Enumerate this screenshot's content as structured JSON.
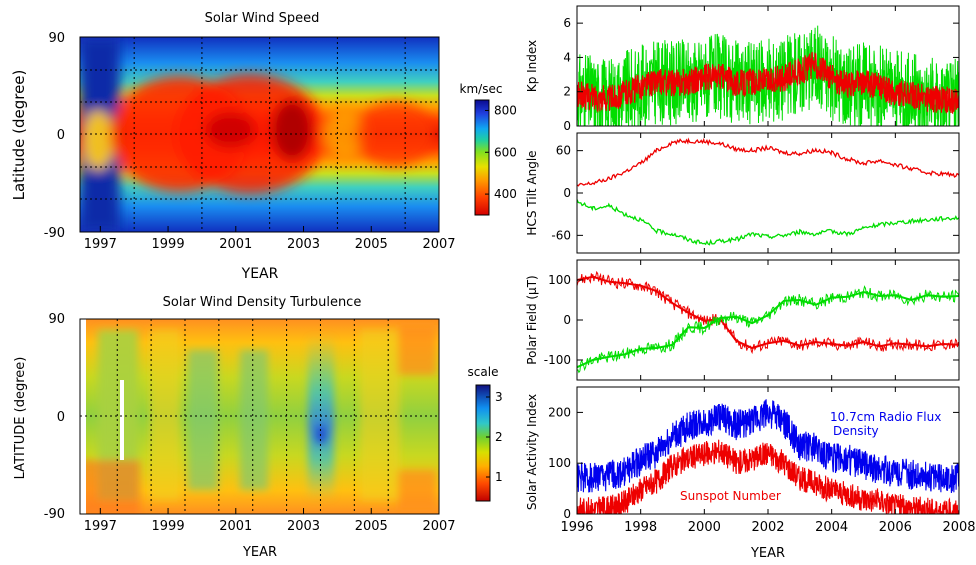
{
  "chart_data": [
    {
      "type": "heatmap",
      "title": "Solar Wind Speed",
      "xlabel": "YEAR",
      "ylabel": "Latitude (degree)",
      "xlim": [
        1996.4,
        2007
      ],
      "ylim": [
        -90,
        90
      ],
      "x_ticks": [
        "1997",
        "1999",
        "2001",
        "2003",
        "2005",
        "2007"
      ],
      "y_ticks": [
        "-90",
        "0",
        "90"
      ],
      "grid_x": [
        1998,
        2000,
        2002,
        2004,
        2006
      ],
      "grid_y": [
        -60,
        -30,
        0,
        30,
        60
      ],
      "colorbar": {
        "label": "km/sec",
        "ticks": [
          "400",
          "600",
          "800"
        ],
        "range": [
          300,
          850
        ]
      }
    },
    {
      "type": "heatmap",
      "title": "Solar Wind Density Turbulence",
      "xlabel": "YEAR",
      "ylabel": "LATITUDE (degree)",
      "xlim": [
        1996.4,
        2007
      ],
      "ylim": [
        -90,
        90
      ],
      "x_ticks": [
        "1997",
        "1999",
        "2001",
        "2003",
        "2005",
        "2007"
      ],
      "y_ticks": [
        "-90",
        "0",
        "90"
      ],
      "grid_x": [
        1997.5,
        1998.5,
        1999.5,
        2000.5,
        2001.5,
        2002.5,
        2003.5,
        2004.5,
        2005.5
      ],
      "grid_y": [
        0
      ],
      "colorbar": {
        "label": "scale",
        "ticks": [
          "1",
          "2",
          "3"
        ],
        "range": [
          0.4,
          3.3
        ]
      }
    },
    {
      "type": "line",
      "ylabel": "Kp Index",
      "xlim": [
        1996,
        2008
      ],
      "ylim": [
        0,
        7
      ],
      "y_ticks": [
        "0",
        "2",
        "4",
        "6"
      ],
      "series": [
        {
          "color": "#00dd00",
          "values": [
            [
              1996.0,
              1.8
            ],
            [
              1996.5,
              1.7
            ],
            [
              1997.0,
              1.6
            ],
            [
              1997.5,
              1.9
            ],
            [
              1998.0,
              2.3
            ],
            [
              1998.5,
              2.6
            ],
            [
              1999.0,
              2.5
            ],
            [
              1999.5,
              2.6
            ],
            [
              2000.0,
              2.8
            ],
            [
              2000.5,
              2.9
            ],
            [
              2001.0,
              2.5
            ],
            [
              2001.5,
              2.6
            ],
            [
              2002.0,
              2.6
            ],
            [
              2002.5,
              2.8
            ],
            [
              2003.0,
              3.2
            ],
            [
              2003.5,
              3.6
            ],
            [
              2004.0,
              2.8
            ],
            [
              2004.5,
              2.4
            ],
            [
              2005.0,
              2.5
            ],
            [
              2005.5,
              2.3
            ],
            [
              2006.0,
              1.9
            ],
            [
              2006.5,
              1.8
            ],
            [
              2007.0,
              1.6
            ],
            [
              2007.5,
              1.5
            ],
            [
              2008.0,
              1.5
            ]
          ]
        },
        {
          "color": "#ee0000",
          "values": [
            [
              1996.0,
              1.8
            ],
            [
              1996.5,
              1.7
            ],
            [
              1997.0,
              1.6
            ],
            [
              1997.5,
              1.9
            ],
            [
              1998.0,
              2.3
            ],
            [
              1998.5,
              2.6
            ],
            [
              1999.0,
              2.5
            ],
            [
              1999.5,
              2.6
            ],
            [
              2000.0,
              2.8
            ],
            [
              2000.5,
              2.9
            ],
            [
              2001.0,
              2.5
            ],
            [
              2001.5,
              2.6
            ],
            [
              2002.0,
              2.6
            ],
            [
              2002.5,
              2.8
            ],
            [
              2003.0,
              3.2
            ],
            [
              2003.5,
              3.6
            ],
            [
              2004.0,
              2.8
            ],
            [
              2004.5,
              2.4
            ],
            [
              2005.0,
              2.5
            ],
            [
              2005.5,
              2.3
            ],
            [
              2006.0,
              1.9
            ],
            [
              2006.5,
              1.8
            ],
            [
              2007.0,
              1.6
            ],
            [
              2007.5,
              1.5
            ],
            [
              2008.0,
              1.5
            ]
          ]
        }
      ]
    },
    {
      "type": "line",
      "ylabel": "HCS Tilt Angle",
      "xlim": [
        1996,
        2008
      ],
      "ylim": [
        -85,
        85
      ],
      "y_ticks": [
        "-60",
        "0",
        "60"
      ],
      "series": [
        {
          "color": "#ee0000",
          "values": [
            [
              1996.0,
              10
            ],
            [
              1996.5,
              14
            ],
            [
              1997.0,
              20
            ],
            [
              1997.5,
              30
            ],
            [
              1998.0,
              42
            ],
            [
              1998.5,
              60
            ],
            [
              1999.0,
              72
            ],
            [
              1999.5,
              74
            ],
            [
              2000.0,
              73
            ],
            [
              2000.5,
              70
            ],
            [
              2001.0,
              62
            ],
            [
              2001.5,
              60
            ],
            [
              2002.0,
              64
            ],
            [
              2002.5,
              57
            ],
            [
              2003.0,
              56
            ],
            [
              2003.5,
              61
            ],
            [
              2004.0,
              57
            ],
            [
              2004.5,
              48
            ],
            [
              2005.0,
              42
            ],
            [
              2005.5,
              46
            ],
            [
              2006.0,
              40
            ],
            [
              2006.5,
              34
            ],
            [
              2007.0,
              29
            ],
            [
              2007.5,
              27
            ],
            [
              2008.0,
              25
            ]
          ]
        },
        {
          "color": "#00dd00",
          "values": [
            [
              1996.0,
              -12
            ],
            [
              1996.5,
              -22
            ],
            [
              1997.0,
              -18
            ],
            [
              1997.5,
              -30
            ],
            [
              1998.0,
              -38
            ],
            [
              1998.5,
              -54
            ],
            [
              1999.0,
              -58
            ],
            [
              1999.5,
              -66
            ],
            [
              2000.0,
              -72
            ],
            [
              2000.5,
              -68
            ],
            [
              2001.0,
              -66
            ],
            [
              2001.5,
              -58
            ],
            [
              2002.0,
              -62
            ],
            [
              2002.5,
              -60
            ],
            [
              2003.0,
              -55
            ],
            [
              2003.5,
              -58
            ],
            [
              2004.0,
              -54
            ],
            [
              2004.5,
              -58
            ],
            [
              2005.0,
              -50
            ],
            [
              2005.5,
              -45
            ],
            [
              2006.0,
              -42
            ],
            [
              2006.5,
              -40
            ],
            [
              2007.0,
              -38
            ],
            [
              2007.5,
              -36
            ],
            [
              2008.0,
              -35
            ]
          ]
        }
      ]
    },
    {
      "type": "line",
      "ylabel": "Polar Field (μT)",
      "xlim": [
        1996,
        2008
      ],
      "ylim": [
        -150,
        150
      ],
      "y_ticks": [
        "-100",
        "0",
        "100"
      ],
      "series": [
        {
          "color": "#ee0000",
          "values": [
            [
              1996.0,
              100
            ],
            [
              1996.5,
              108
            ],
            [
              1997.0,
              96
            ],
            [
              1997.5,
              92
            ],
            [
              1998.0,
              86
            ],
            [
              1998.5,
              72
            ],
            [
              1999.0,
              42
            ],
            [
              1999.5,
              18
            ],
            [
              2000.0,
              -2
            ],
            [
              2000.5,
              2
            ],
            [
              2001.0,
              -52
            ],
            [
              2001.5,
              -70
            ],
            [
              2002.0,
              -58
            ],
            [
              2002.5,
              -52
            ],
            [
              2003.0,
              -64
            ],
            [
              2003.5,
              -55
            ],
            [
              2004.0,
              -60
            ],
            [
              2004.5,
              -64
            ],
            [
              2005.0,
              -55
            ],
            [
              2005.5,
              -66
            ],
            [
              2006.0,
              -58
            ],
            [
              2006.5,
              -62
            ],
            [
              2007.0,
              -66
            ],
            [
              2007.5,
              -60
            ],
            [
              2008.0,
              -62
            ]
          ]
        },
        {
          "color": "#00dd00",
          "values": [
            [
              1996.0,
              -118
            ],
            [
              1996.5,
              -100
            ],
            [
              1997.0,
              -92
            ],
            [
              1997.5,
              -86
            ],
            [
              1998.0,
              -72
            ],
            [
              1998.5,
              -70
            ],
            [
              1999.0,
              -62
            ],
            [
              1999.5,
              -18
            ],
            [
              2000.0,
              -20
            ],
            [
              2000.5,
              5
            ],
            [
              2001.0,
              8
            ],
            [
              2001.5,
              -8
            ],
            [
              2002.0,
              12
            ],
            [
              2002.5,
              48
            ],
            [
              2003.0,
              50
            ],
            [
              2003.5,
              38
            ],
            [
              2004.0,
              56
            ],
            [
              2004.5,
              58
            ],
            [
              2005.0,
              70
            ],
            [
              2005.5,
              60
            ],
            [
              2006.0,
              62
            ],
            [
              2006.5,
              50
            ],
            [
              2007.0,
              62
            ],
            [
              2007.5,
              58
            ],
            [
              2008.0,
              60
            ]
          ]
        }
      ]
    },
    {
      "type": "line",
      "xlabel": "YEAR",
      "ylabel": "Solar Activity Index",
      "xlim": [
        1996,
        2008
      ],
      "ylim": [
        0,
        250
      ],
      "x_ticks": [
        "1996",
        "1998",
        "2000",
        "2002",
        "2004",
        "2006",
        "2008"
      ],
      "y_ticks": [
        "0",
        "100",
        "200"
      ],
      "series": [
        {
          "name": "10.7cm Radio Flux Density",
          "color": "#0000ee",
          "values": [
            [
              1996.0,
              72
            ],
            [
              1996.5,
              72
            ],
            [
              1997.0,
              75
            ],
            [
              1997.5,
              82
            ],
            [
              1998.0,
              105
            ],
            [
              1998.5,
              120
            ],
            [
              1999.0,
              150
            ],
            [
              1999.5,
              172
            ],
            [
              2000.0,
              180
            ],
            [
              2000.5,
              190
            ],
            [
              2001.0,
              175
            ],
            [
              2001.5,
              180
            ],
            [
              2002.0,
              200
            ],
            [
              2002.5,
              180
            ],
            [
              2003.0,
              135
            ],
            [
              2003.5,
              130
            ],
            [
              2004.0,
              110
            ],
            [
              2004.5,
              108
            ],
            [
              2005.0,
              95
            ],
            [
              2005.5,
              88
            ],
            [
              2006.0,
              82
            ],
            [
              2006.5,
              78
            ],
            [
              2007.0,
              74
            ],
            [
              2007.5,
              72
            ],
            [
              2008.0,
              70
            ]
          ]
        },
        {
          "name": "Sunspot Number",
          "color": "#ee0000",
          "values": [
            [
              1996.0,
              10
            ],
            [
              1996.5,
              8
            ],
            [
              1997.0,
              12
            ],
            [
              1997.5,
              22
            ],
            [
              1998.0,
              48
            ],
            [
              1998.5,
              65
            ],
            [
              1999.0,
              95
            ],
            [
              1999.5,
              110
            ],
            [
              2000.0,
              118
            ],
            [
              2000.5,
              125
            ],
            [
              2001.0,
              100
            ],
            [
              2001.5,
              108
            ],
            [
              2002.0,
              120
            ],
            [
              2002.5,
              100
            ],
            [
              2003.0,
              70
            ],
            [
              2003.5,
              60
            ],
            [
              2004.0,
              45
            ],
            [
              2004.5,
              40
            ],
            [
              2005.0,
              30
            ],
            [
              2005.5,
              25
            ],
            [
              2006.0,
              15
            ],
            [
              2006.5,
              12
            ],
            [
              2007.0,
              8
            ],
            [
              2007.5,
              6
            ],
            [
              2008.0,
              4
            ]
          ]
        }
      ],
      "annotations": [
        "10.7cm Radio Flux",
        "Density",
        "Sunspot Number"
      ]
    }
  ]
}
